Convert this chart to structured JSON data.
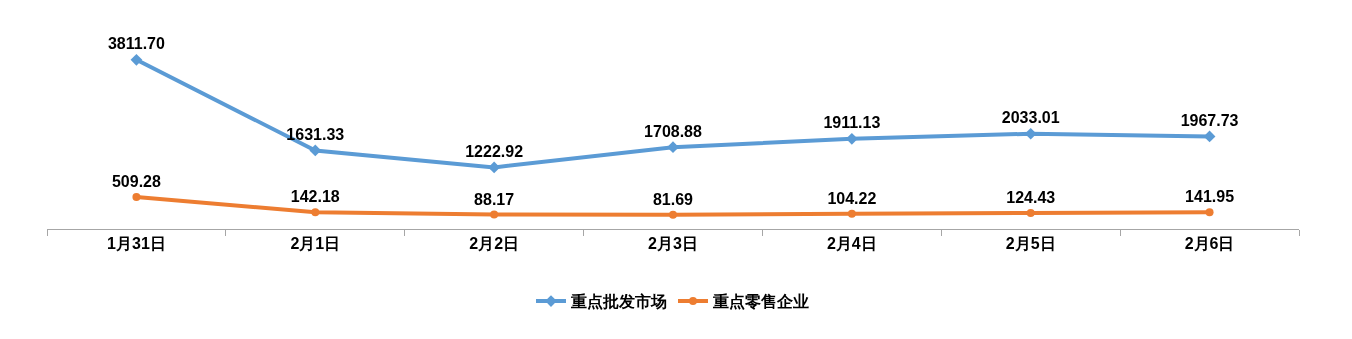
{
  "chart_data": {
    "type": "line",
    "categories": [
      "1月31日",
      "2月1日",
      "2月2日",
      "2月3日",
      "2月4日",
      "2月5日",
      "2月6日"
    ],
    "series": [
      {
        "name": "重点批发市场",
        "color": "#5b9bd5",
        "marker": "diamond",
        "values": [
          3811.7,
          1631.33,
          1222.92,
          1708.88,
          1911.13,
          2033.01,
          1967.73
        ],
        "value_labels": [
          "3811.70",
          "1631.33",
          "1222.92",
          "1708.88",
          "1911.13",
          "2033.01",
          "1967.73"
        ]
      },
      {
        "name": "重点零售企业",
        "color": "#ed7d31",
        "marker": "circle",
        "values": [
          509.28,
          142.18,
          88.17,
          81.69,
          104.22,
          124.43,
          141.95
        ],
        "value_labels": [
          "509.28",
          "142.18",
          "88.17",
          "81.69",
          "104.22",
          "124.43",
          "141.95"
        ]
      }
    ],
    "legend": "bottom",
    "line_style": "solid",
    "tick_labels": "x"
  }
}
